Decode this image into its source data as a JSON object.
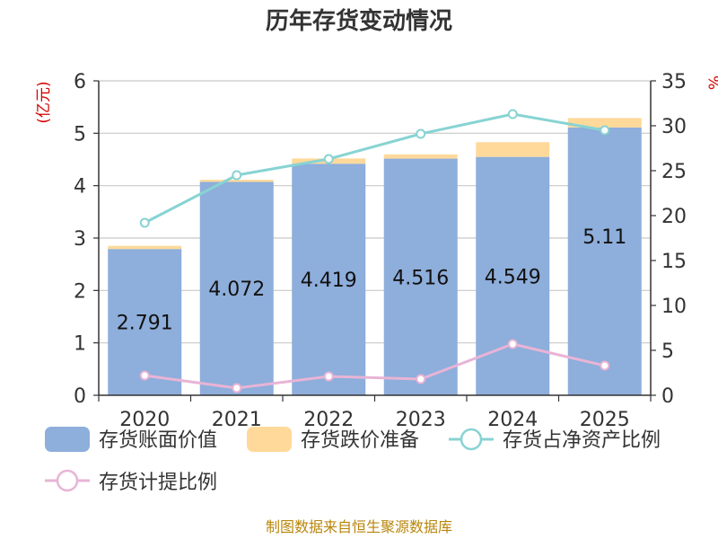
{
  "chart_data": {
    "type": "bar",
    "title": "历年存货变动情况",
    "categories": [
      "2020",
      "2021",
      "2022",
      "2023",
      "2024",
      "2025"
    ],
    "y_left": {
      "unit": "(亿元)",
      "min": 0,
      "max": 6,
      "ticks": [
        "0",
        "1",
        "2",
        "3",
        "4",
        "5",
        "6"
      ]
    },
    "y_right": {
      "unit": "%",
      "min": 0,
      "max": 35,
      "ticks": [
        "0",
        "5",
        "10",
        "15",
        "20",
        "25",
        "30",
        "35"
      ]
    },
    "series": [
      {
        "name": "存货账面价值",
        "kind": "bar",
        "axis": "left",
        "color": "#8eaedb",
        "values": [
          2.791,
          4.072,
          4.419,
          4.516,
          4.549,
          5.11
        ],
        "labels": [
          "2.791",
          "4.072",
          "4.419",
          "4.516",
          "4.549",
          "5.11"
        ]
      },
      {
        "name": "存货跌价准备",
        "kind": "bar-stack",
        "axis": "left",
        "color": "#ffd99a",
        "values": [
          0.06,
          0.04,
          0.1,
          0.08,
          0.28,
          0.18
        ]
      },
      {
        "name": "存货占净资产比例",
        "kind": "line",
        "axis": "right",
        "color": "#88d3d3",
        "values": [
          19.2,
          24.5,
          26.3,
          29.1,
          31.3,
          29.5
        ]
      },
      {
        "name": "存货计提比例",
        "kind": "line",
        "axis": "right",
        "color": "#e8b4d6",
        "values": [
          2.2,
          0.8,
          2.1,
          1.8,
          5.7,
          3.3
        ]
      }
    ],
    "grid": true,
    "legend": "bottom"
  },
  "footer": {
    "source": "制图数据来自恒生聚源数据库"
  }
}
